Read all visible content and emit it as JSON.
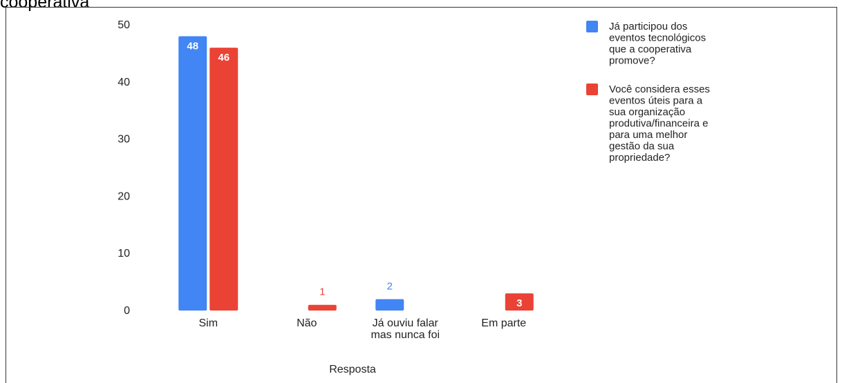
{
  "header": {
    "title_fragment": "cooperativa"
  },
  "chart_data": {
    "type": "bar",
    "categories": [
      "Sim",
      "Não",
      [
        "Já ouviu falar",
        "mas nunca foi"
      ],
      "Em parte"
    ],
    "xlabel": "Resposta",
    "ylim": [
      0,
      50
    ],
    "yticks": [
      0,
      10,
      20,
      30,
      40,
      50
    ],
    "legend_position": "right",
    "series": [
      {
        "name": [
          "Já participou dos",
          "eventos tecnológicos",
          "que a cooperativa",
          "promove?"
        ],
        "color": "#4285f4",
        "values": [
          48,
          null,
          2,
          null
        ]
      },
      {
        "name": [
          "Você considera esses",
          "eventos úteis para a",
          "sua organização",
          "produtiva/financeira e",
          "para uma melhor",
          "gestão da sua",
          "propriedade?"
        ],
        "color": "#ea4335",
        "values": [
          46,
          1,
          null,
          3
        ]
      }
    ]
  }
}
